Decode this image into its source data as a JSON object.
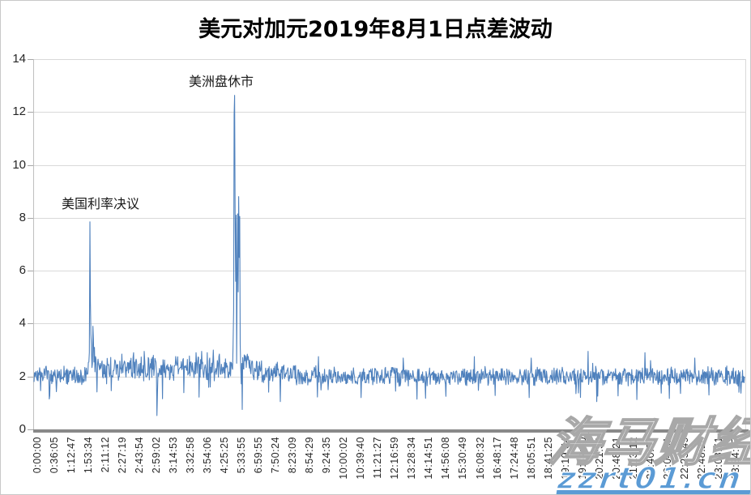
{
  "chart_data": {
    "type": "line",
    "title": "美元对加元2019年8月1日点差波动",
    "xlabel": "",
    "ylabel": "",
    "ylim": [
      0,
      14
    ],
    "y_ticks": [
      0,
      2,
      4,
      6,
      8,
      10,
      12,
      14
    ],
    "grid": "horizontal-only",
    "legend": "none",
    "x_tick_labels": [
      "0:00:00",
      "0:36:05",
      "1:12:47",
      "1:53:34",
      "2:11:12",
      "2:27:19",
      "2:43:54",
      "2:59:02",
      "3:14:53",
      "3:32:58",
      "3:54:06",
      "4:25:25",
      "5:33:55",
      "6:59:55",
      "7:50:24",
      "8:23:09",
      "8:54:29",
      "9:24:35",
      "10:00:02",
      "10:39:40",
      "11:21:27",
      "12:16:59",
      "13:28:34",
      "14:14:51",
      "14:56:08",
      "15:30:49",
      "16:08:32",
      "16:48:17",
      "17:24:48",
      "18:05:51",
      "18:41:25",
      "19:19:54",
      "19:54:20",
      "20:21:50",
      "20:48:21",
      "21:13:12",
      "21:40:37",
      "22:04:01",
      "22:25:49",
      "22:48:26",
      "23:08:51",
      "23:34:57"
    ],
    "annotations": [
      {
        "text": "美国利率决议",
        "points_to": "spike near 1:53-2:00, peak ≈ 7.85"
      },
      {
        "text": "美洲盘休市",
        "points_to": "spike at 5:33:55, peak ≈ 12.6"
      }
    ],
    "series": [
      {
        "name": "点差",
        "color": "#4F81BD",
        "baseline": 2.0,
        "noise_band": [
          1.5,
          2.5
        ],
        "key_points": [
          {
            "time": "1:53:34",
            "value": 7.85
          },
          {
            "time": "2:59:02",
            "value": 0.5
          },
          {
            "time": "5:33:55",
            "value": 12.6
          },
          {
            "time": "5:36:00",
            "value": 8.8
          },
          {
            "time": "5:40:00",
            "value": 0.75
          },
          {
            "time": "20:00:00",
            "value": 2.95
          },
          {
            "time": "22:10:00",
            "value": 2.9
          }
        ]
      }
    ],
    "render": {
      "seed": 7,
      "n_points": 1400,
      "envelope": [
        [
          0,
          2.02
        ],
        [
          0.07,
          2.02
        ],
        [
          0.082,
          2.45
        ],
        [
          0.095,
          2.25
        ],
        [
          0.13,
          2.3
        ],
        [
          0.18,
          2.25
        ],
        [
          0.23,
          2.35
        ],
        [
          0.275,
          2.3
        ],
        [
          0.296,
          2.5
        ],
        [
          0.32,
          2.25
        ],
        [
          0.37,
          2.05
        ],
        [
          0.45,
          2.0
        ],
        [
          0.6,
          2.0
        ],
        [
          0.75,
          2.02
        ],
        [
          0.9,
          2.0
        ],
        [
          1,
          2.0
        ]
      ],
      "amplitude": [
        [
          0,
          0.4
        ],
        [
          0.075,
          0.42
        ],
        [
          0.09,
          0.55
        ],
        [
          0.3,
          0.52
        ],
        [
          0.34,
          0.45
        ],
        [
          0.4,
          0.4
        ],
        [
          1,
          0.4
        ]
      ],
      "spikes": [
        [
          0.0779,
          2.9
        ],
        [
          0.0787,
          7.85
        ],
        [
          0.0795,
          4.8
        ],
        [
          0.0803,
          3.6
        ],
        [
          0.0811,
          3.2
        ],
        [
          0.0827,
          3.9
        ],
        [
          0.0835,
          3.4
        ],
        [
          0.0851,
          3.1
        ],
        [
          0.124,
          2.85
        ],
        [
          0.14,
          2.9
        ],
        [
          0.155,
          2.95
        ],
        [
          0.168,
          2.8
        ],
        [
          0.173,
          0.52
        ],
        [
          0.228,
          2.9
        ],
        [
          0.236,
          2.95
        ],
        [
          0.244,
          2.9
        ],
        [
          0.252,
          3.0
        ],
        [
          0.261,
          2.85
        ],
        [
          0.28,
          3.2
        ],
        [
          0.2808,
          4.5
        ],
        [
          0.2816,
          11.9
        ],
        [
          0.2824,
          12.63
        ],
        [
          0.2832,
          8.2
        ],
        [
          0.284,
          5.6
        ],
        [
          0.2848,
          8.1
        ],
        [
          0.2856,
          6.0
        ],
        [
          0.2864,
          8.15
        ],
        [
          0.2872,
          5.2
        ],
        [
          0.288,
          8.8
        ],
        [
          0.2888,
          6.5
        ],
        [
          0.2896,
          8.05
        ],
        [
          0.2904,
          3.2
        ],
        [
          0.2912,
          2.4
        ],
        [
          0.2928,
          0.75
        ],
        [
          0.2944,
          2.3
        ],
        [
          0.347,
          1.05
        ],
        [
          0.4,
          2.75
        ],
        [
          0.46,
          1.2
        ],
        [
          0.52,
          2.7
        ],
        [
          0.58,
          1.25
        ],
        [
          0.62,
          2.75
        ],
        [
          0.7,
          2.7
        ],
        [
          0.78,
          2.95
        ],
        [
          0.786,
          2.5
        ],
        [
          0.792,
          1.05
        ],
        [
          0.86,
          2.9
        ],
        [
          0.868,
          2.6
        ],
        [
          0.93,
          2.7
        ],
        [
          0.95,
          1.3
        ]
      ]
    }
  },
  "annotations": {
    "rate_decision": "美国利率决议",
    "market_close": "美洲盘休市"
  },
  "watermark": {
    "site_text": "海马财经",
    "url_text": "zzrt01.cn",
    "accent_color": "#5b9bd5"
  }
}
